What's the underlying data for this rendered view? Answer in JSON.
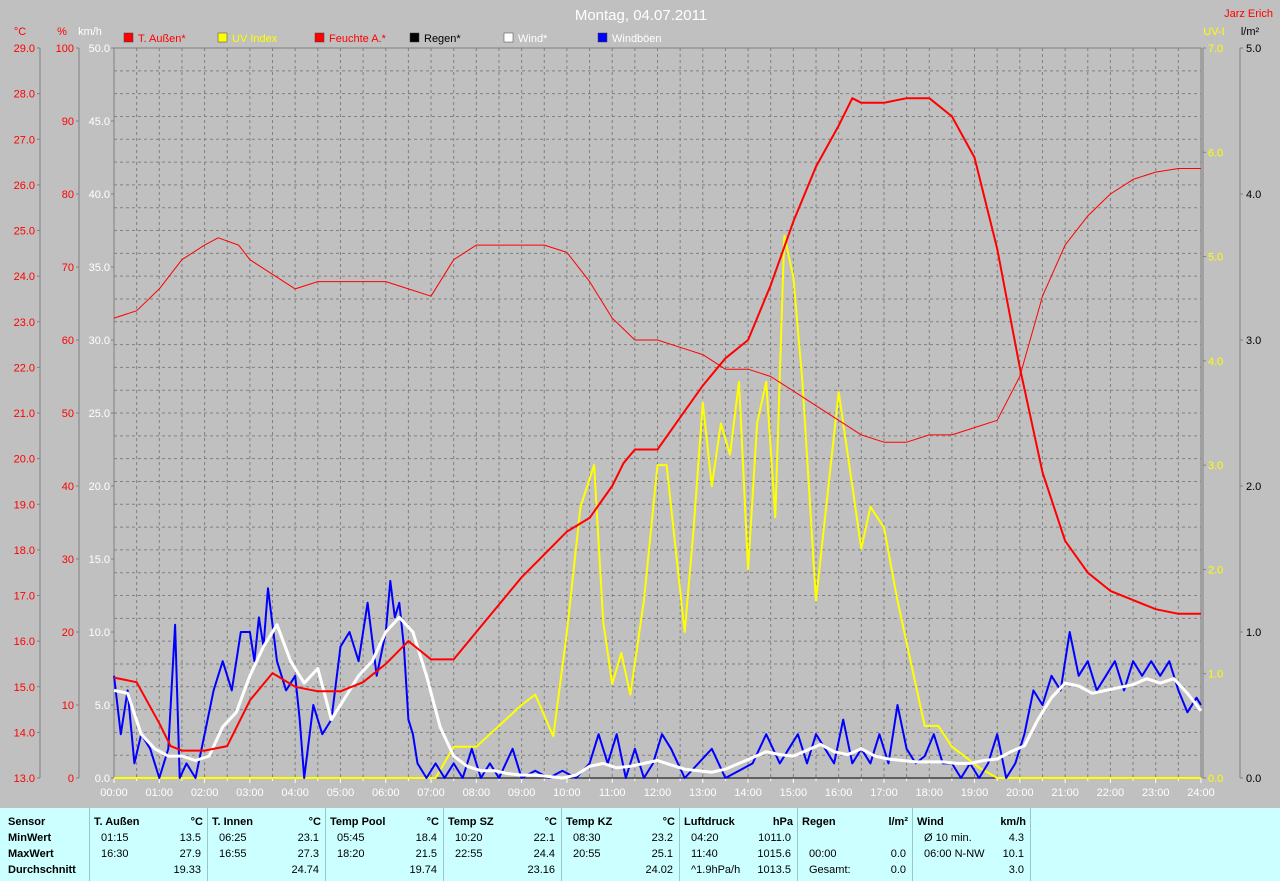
{
  "header": {
    "title": "Montag, 04.07.2011",
    "author": "Jarz Erich"
  },
  "colors": {
    "background": "#c0c0c0",
    "temperature": "#ff0000",
    "humidity": "#ff0000",
    "uv": "#ffff00",
    "rain": "#000000",
    "wind": "#ffffff",
    "gusts": "#0000ff",
    "stats_bg": "#ccffff"
  },
  "chart_data": {
    "type": "line",
    "title": "Montag, 04.07.2011",
    "x_ticks": [
      "00:00",
      "01:00",
      "02:00",
      "03:00",
      "04:00",
      "05:00",
      "06:00",
      "07:00",
      "08:00",
      "09:00",
      "10:00",
      "11:00",
      "12:00",
      "13:00",
      "14:00",
      "15:00",
      "16:00",
      "17:00",
      "18:00",
      "19:00",
      "20:00",
      "21:00",
      "22:00",
      "23:00",
      "24:00"
    ],
    "x_range_hours": [
      0,
      24
    ],
    "grid": true,
    "legend_position": "top",
    "axes": {
      "temp": {
        "unit": "°C",
        "range": [
          13,
          29
        ],
        "ticks": [
          "13.0",
          "14.0",
          "15.0",
          "16.0",
          "17.0",
          "18.0",
          "19.0",
          "20.0",
          "21.0",
          "22.0",
          "23.0",
          "24.0",
          "25.0",
          "26.0",
          "27.0",
          "28.0",
          "29.0"
        ]
      },
      "humidity": {
        "unit": "%",
        "range": [
          0,
          100
        ],
        "ticks": [
          "0",
          "10",
          "20",
          "30",
          "40",
          "50",
          "60",
          "70",
          "80",
          "90",
          "100"
        ]
      },
      "wind": {
        "unit": "km/h",
        "range": [
          0,
          50
        ],
        "ticks": [
          "0.0",
          "5.0",
          "10.0",
          "15.0",
          "20.0",
          "25.0",
          "30.0",
          "35.0",
          "40.0",
          "45.0",
          "50.0"
        ]
      },
      "uv": {
        "unit": "UV-I",
        "range": [
          0,
          7
        ],
        "ticks": [
          "0.0",
          "1.0",
          "2.0",
          "3.0",
          "4.0",
          "5.0",
          "6.0",
          "7.0"
        ]
      },
      "rain": {
        "unit": "l/m²",
        "range": [
          0,
          5
        ],
        "ticks": [
          "0.0",
          "1.0",
          "2.0",
          "3.0",
          "4.0",
          "5.0"
        ]
      }
    },
    "legend": [
      {
        "name": "T. Außen*",
        "color": "#ff0000"
      },
      {
        "name": "UV Index",
        "color": "#ffff00"
      },
      {
        "name": "Feuchte A.*",
        "color": "#ff0000"
      },
      {
        "name": "Regen*",
        "color": "#000000"
      },
      {
        "name": "Wind*",
        "color": "#ffffff"
      },
      {
        "name": "Windböen",
        "color": "#0000ff"
      }
    ],
    "series": [
      {
        "name": "T. Außen*",
        "axis": "temp",
        "x": [
          0,
          0.5,
          1,
          1.25,
          1.5,
          2,
          2.5,
          3,
          3.5,
          4,
          4.5,
          5,
          5.5,
          6,
          6.5,
          7,
          7.5,
          8,
          8.5,
          9,
          9.5,
          10,
          10.5,
          11,
          11.25,
          11.5,
          12,
          12.5,
          13,
          13.5,
          14,
          14.5,
          15,
          15.5,
          16,
          16.3,
          16.5,
          17,
          17.5,
          18,
          18.5,
          19,
          19.5,
          20,
          20.5,
          21,
          21.5,
          22,
          22.5,
          23,
          23.5,
          24
        ],
        "y": [
          15.2,
          15.1,
          14.2,
          13.7,
          13.6,
          13.6,
          13.7,
          14.7,
          15.3,
          15.0,
          14.9,
          14.9,
          15.1,
          15.5,
          16.0,
          15.6,
          15.6,
          16.2,
          16.8,
          17.4,
          17.9,
          18.4,
          18.7,
          19.4,
          19.9,
          20.2,
          20.2,
          20.9,
          21.6,
          22.2,
          22.6,
          23.8,
          25.2,
          26.4,
          27.3,
          27.9,
          27.8,
          27.8,
          27.9,
          27.9,
          27.5,
          26.6,
          24.6,
          22.0,
          19.7,
          18.2,
          17.5,
          17.1,
          16.9,
          16.7,
          16.6,
          16.6
        ]
      },
      {
        "name": "Feuchte A.*",
        "axis": "humidity",
        "x": [
          0,
          0.5,
          1,
          1.5,
          2,
          2.3,
          2.75,
          3,
          3.5,
          4,
          4.5,
          5,
          5.5,
          6,
          6.5,
          7,
          7.5,
          8,
          8.5,
          9,
          9.5,
          10,
          10.5,
          11,
          11.5,
          12,
          12.5,
          13,
          13.5,
          14,
          14.5,
          15,
          15.5,
          16,
          16.5,
          17,
          17.5,
          18,
          18.5,
          19,
          19.5,
          20,
          20.5,
          21,
          21.5,
          22,
          22.5,
          23,
          23.5,
          24
        ],
        "y": [
          63,
          64,
          67,
          71,
          73,
          74,
          73,
          71,
          69,
          67,
          68,
          68,
          68,
          68,
          67,
          66,
          71,
          73,
          73,
          73,
          73,
          72,
          68,
          63,
          60,
          60,
          59,
          58,
          56,
          56,
          55,
          53,
          51,
          49,
          47,
          46,
          46,
          47,
          47,
          48,
          49,
          55,
          66,
          73,
          77,
          80,
          82,
          83,
          83.5,
          83.5
        ]
      },
      {
        "name": "UV Index",
        "axis": "uv",
        "x": [
          0,
          7.1,
          7.5,
          8,
          8.5,
          9,
          9.3,
          9.7,
          10,
          10.3,
          10.6,
          10.8,
          11,
          11.2,
          11.4,
          11.7,
          12,
          12.2,
          12.4,
          12.6,
          12.8,
          13,
          13.2,
          13.4,
          13.6,
          13.8,
          14,
          14.2,
          14.4,
          14.6,
          14.8,
          15,
          15.2,
          15.5,
          15.8,
          16,
          16.3,
          16.5,
          16.7,
          17,
          17.3,
          17.6,
          17.9,
          18.2,
          18.5,
          18.8,
          19.1,
          19.5,
          24
        ],
        "y": [
          0,
          0,
          0.3,
          0.3,
          0.5,
          0.7,
          0.8,
          0.4,
          1.4,
          2.6,
          3.0,
          1.5,
          0.9,
          1.2,
          0.8,
          1.7,
          3.0,
          3.0,
          2.2,
          1.4,
          2.4,
          3.6,
          2.8,
          3.4,
          3.1,
          3.8,
          2.0,
          3.4,
          3.8,
          2.5,
          5.2,
          4.8,
          3.8,
          1.7,
          2.9,
          3.7,
          2.8,
          2.2,
          2.6,
          2.4,
          1.7,
          1.1,
          0.5,
          0.5,
          0.3,
          0.2,
          0.1,
          0,
          0
        ]
      },
      {
        "name": "Wind*",
        "axis": "wind",
        "x": [
          0,
          0.3,
          0.6,
          0.9,
          1.2,
          1.5,
          1.8,
          2.1,
          2.4,
          2.7,
          3,
          3.3,
          3.6,
          3.9,
          4.2,
          4.5,
          4.8,
          5.1,
          5.4,
          5.7,
          6,
          6.3,
          6.6,
          6.9,
          7.2,
          7.5,
          7.8,
          8.1,
          8.4,
          8.7,
          9,
          9.3,
          9.6,
          9.9,
          10.2,
          10.5,
          10.8,
          11.1,
          11.4,
          11.7,
          12,
          12.3,
          12.6,
          12.9,
          13.2,
          13.5,
          13.8,
          14.1,
          14.4,
          14.7,
          15,
          15.3,
          15.6,
          15.9,
          16.2,
          16.5,
          16.8,
          17.1,
          17.4,
          17.7,
          18,
          18.3,
          18.6,
          18.9,
          19.2,
          19.5,
          19.8,
          20.1,
          20.4,
          20.7,
          21,
          21.3,
          21.6,
          21.9,
          22.2,
          22.5,
          22.8,
          23.1,
          23.4,
          23.7,
          24
        ],
        "y": [
          6,
          5.8,
          3,
          2,
          1.5,
          1.5,
          1.2,
          1.5,
          3.5,
          4.5,
          7,
          9,
          10.5,
          8,
          6.5,
          7.5,
          4,
          5.5,
          7,
          8,
          10,
          11,
          10,
          7,
          3.5,
          1.5,
          0.8,
          0.5,
          0.5,
          0.3,
          0.2,
          0.2,
          0.1,
          0,
          0.2,
          0.8,
          1,
          0.7,
          0.8,
          1,
          1.2,
          0.9,
          0.6,
          0.5,
          0.4,
          0.6,
          1,
          1.4,
          1.8,
          1.6,
          1.5,
          1.9,
          2.3,
          1.8,
          1.6,
          2,
          1.5,
          1.3,
          1.2,
          1.1,
          1.1,
          1.1,
          1,
          1,
          1.2,
          1.3,
          1.8,
          2.2,
          4,
          5.5,
          6.5,
          6.3,
          5.8,
          6,
          6.2,
          6.4,
          6.8,
          6.5,
          6.8,
          5.8,
          4.6
        ]
      },
      {
        "name": "Windböen",
        "axis": "wind",
        "x": [
          0,
          0.15,
          0.3,
          0.45,
          0.6,
          0.8,
          1.0,
          1.2,
          1.35,
          1.45,
          1.6,
          1.8,
          2.0,
          2.2,
          2.4,
          2.6,
          2.8,
          3.0,
          3.1,
          3.2,
          3.3,
          3.4,
          3.5,
          3.6,
          3.8,
          4.0,
          4.1,
          4.2,
          4.4,
          4.6,
          4.8,
          5.0,
          5.2,
          5.4,
          5.6,
          5.8,
          6.0,
          6.1,
          6.2,
          6.3,
          6.4,
          6.5,
          6.6,
          6.7,
          6.9,
          7.1,
          7.3,
          7.5,
          7.7,
          7.9,
          8.1,
          8.3,
          8.5,
          8.8,
          9.0,
          9.3,
          9.6,
          9.9,
          10.2,
          10.5,
          10.7,
          10.9,
          11.1,
          11.3,
          11.5,
          11.7,
          11.9,
          12.1,
          12.3,
          12.6,
          12.9,
          13.2,
          13.5,
          13.8,
          14.1,
          14.4,
          14.7,
          14.9,
          15.1,
          15.3,
          15.5,
          15.7,
          15.9,
          16.1,
          16.3,
          16.5,
          16.7,
          16.9,
          17.1,
          17.3,
          17.5,
          17.7,
          17.9,
          18.1,
          18.3,
          18.5,
          18.7,
          18.9,
          19.1,
          19.3,
          19.5,
          19.7,
          19.9,
          20.1,
          20.3,
          20.5,
          20.7,
          20.9,
          21.1,
          21.3,
          21.5,
          21.7,
          21.9,
          22.1,
          22.3,
          22.5,
          22.7,
          22.9,
          23.1,
          23.3,
          23.5,
          23.7,
          23.9,
          24
        ],
        "y": [
          7,
          3,
          6,
          1,
          3,
          2,
          0,
          2,
          10.5,
          0,
          1,
          0,
          3,
          6,
          8,
          6,
          10,
          10,
          8,
          11,
          9,
          13,
          10.5,
          8,
          6,
          7,
          4,
          0,
          5,
          3,
          4,
          9,
          10,
          8,
          12,
          7,
          10,
          13.5,
          11,
          12,
          9,
          4,
          3,
          1,
          0,
          1,
          0,
          1,
          0,
          2,
          0,
          1,
          0,
          2,
          0,
          0.5,
          0,
          0.5,
          0,
          1,
          3,
          1,
          3,
          0,
          2,
          0,
          1,
          3,
          2,
          0,
          1,
          2,
          0,
          0.5,
          1,
          3,
          1,
          2,
          3,
          1,
          3,
          2,
          1,
          4,
          1,
          2,
          1,
          3,
          1,
          5,
          2,
          1,
          1.5,
          3,
          1,
          1,
          0,
          1,
          0,
          1,
          3,
          0,
          1,
          3,
          6,
          5,
          7,
          6,
          10,
          7,
          8,
          6,
          7,
          8,
          6,
          8,
          7,
          8,
          7,
          8,
          6,
          4.5,
          5.5,
          5
        ]
      },
      {
        "name": "Regen*",
        "axis": "rain",
        "x": [
          0,
          24
        ],
        "y": [
          0,
          0
        ]
      }
    ]
  },
  "stats": {
    "sensor": {
      "title": "Sensor",
      "rows": [
        "MinWert",
        "MaxWert",
        "Durchschnitt"
      ]
    },
    "groups": [
      {
        "title": "T. Außen",
        "unit": "°C",
        "rows": [
          [
            "01:15",
            "13.5"
          ],
          [
            "16:30",
            "27.9"
          ],
          [
            "",
            "19.33"
          ]
        ]
      },
      {
        "title": "T. Innen",
        "unit": "°C",
        "rows": [
          [
            "06:25",
            "23.1"
          ],
          [
            "16:55",
            "27.3"
          ],
          [
            "",
            "24.74"
          ]
        ]
      },
      {
        "title": "Temp Pool",
        "unit": "°C",
        "rows": [
          [
            "05:45",
            "18.4"
          ],
          [
            "18:20",
            "21.5"
          ],
          [
            "",
            "19.74"
          ]
        ]
      },
      {
        "title": "Temp SZ",
        "unit": "°C",
        "rows": [
          [
            "10:20",
            "22.1"
          ],
          [
            "22:55",
            "24.4"
          ],
          [
            "",
            "23.16"
          ]
        ]
      },
      {
        "title": "Temp KZ",
        "unit": "°C",
        "rows": [
          [
            "08:30",
            "23.2"
          ],
          [
            "20:55",
            "25.1"
          ],
          [
            "",
            "24.02"
          ]
        ]
      },
      {
        "title": "Luftdruck",
        "unit": "hPa",
        "rows": [
          [
            "04:20",
            "1011.0"
          ],
          [
            "11:40",
            "1015.6"
          ],
          [
            "^1.9hPa/h",
            "1013.5"
          ]
        ]
      },
      {
        "title": "Regen",
        "unit": "l/m²",
        "rows": [
          [
            "",
            ""
          ],
          [
            "00:00",
            "0.0"
          ],
          [
            "Gesamt:",
            "0.0"
          ]
        ]
      },
      {
        "title": "Wind",
        "unit": "km/h",
        "rows": [
          [
            "Ø 10 min.",
            "4.3"
          ],
          [
            "06:00   N-NW",
            "10.1"
          ],
          [
            "",
            "3.0"
          ]
        ]
      }
    ]
  }
}
